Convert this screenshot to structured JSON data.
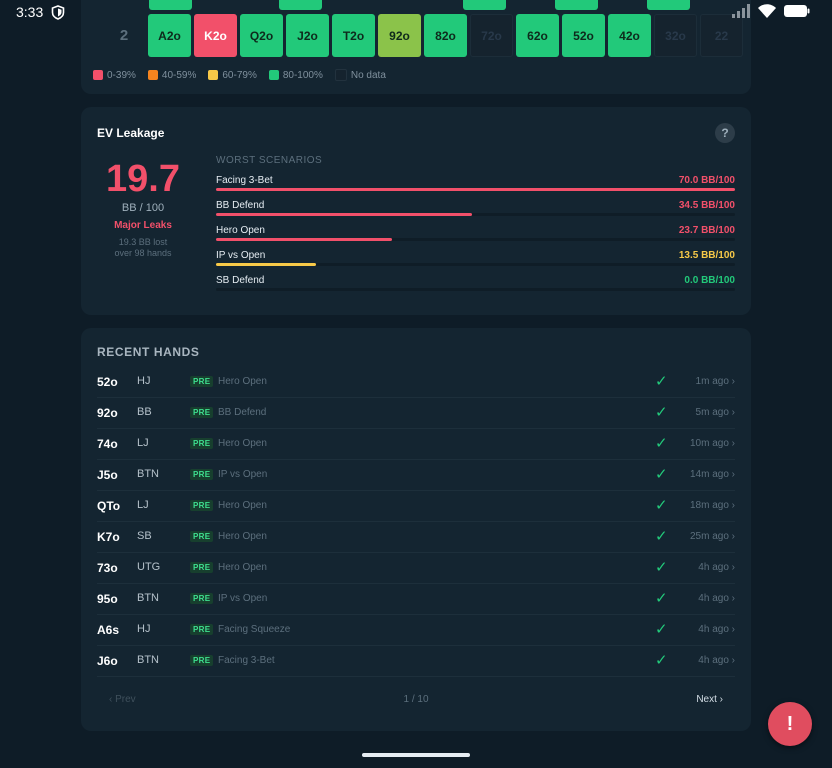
{
  "status_bar": {
    "time": "3:33"
  },
  "grid": {
    "row_label": "2",
    "cells": [
      {
        "text": "A2o",
        "color": "green"
      },
      {
        "text": "K2o",
        "color": "red"
      },
      {
        "text": "Q2o",
        "color": "green"
      },
      {
        "text": "J2o",
        "color": "green"
      },
      {
        "text": "T2o",
        "color": "green"
      },
      {
        "text": "92o",
        "color": "light-green"
      },
      {
        "text": "82o",
        "color": "green"
      },
      {
        "text": "72o",
        "color": "no-data"
      },
      {
        "text": "62o",
        "color": "green"
      },
      {
        "text": "52o",
        "color": "green"
      },
      {
        "text": "42o",
        "color": "green"
      },
      {
        "text": "32o",
        "color": "no-data"
      },
      {
        "text": "22",
        "color": "no-data"
      }
    ],
    "legend": [
      {
        "label": "0-39%",
        "color": "#f2506a"
      },
      {
        "label": "40-59%",
        "color": "#f5841f"
      },
      {
        "label": "60-79%",
        "color": "#f7c948"
      },
      {
        "label": "80-100%",
        "color": "#22c97a"
      },
      {
        "label": "No data",
        "color": "#15232e"
      }
    ]
  },
  "ev": {
    "title": "EV Leakage",
    "help": "?",
    "value": "19.7",
    "unit": "BB / 100",
    "status": "Major Leaks",
    "lost_line1": "19.3 BB lost",
    "lost_line2": "over 98 hands",
    "scenarios_heading": "WORST SCENARIOS",
    "scenarios": [
      {
        "name": "Facing 3-Bet",
        "value": "70.0 BB/100",
        "pct": 100,
        "color": "#f2506a"
      },
      {
        "name": "BB Defend",
        "value": "34.5 BB/100",
        "pct": 49.3,
        "color": "#f2506a"
      },
      {
        "name": "Hero Open",
        "value": "23.7 BB/100",
        "pct": 33.9,
        "color": "#f2506a"
      },
      {
        "name": "IP vs Open",
        "value": "13.5 BB/100",
        "pct": 19.3,
        "color": "#f7c948"
      },
      {
        "name": "SB Defend",
        "value": "0.0 BB/100",
        "pct": 0,
        "color": "#22c97a"
      }
    ]
  },
  "recent": {
    "title": "RECENT HANDS",
    "hands": [
      {
        "cards": "52o",
        "pos": "HJ",
        "badge": "PRE",
        "scenario": "Hero Open",
        "check": "✓",
        "time": "1m ago ›"
      },
      {
        "cards": "92o",
        "pos": "BB",
        "badge": "PRE",
        "scenario": "BB Defend",
        "check": "✓",
        "time": "5m ago ›"
      },
      {
        "cards": "74o",
        "pos": "LJ",
        "badge": "PRE",
        "scenario": "Hero Open",
        "check": "✓",
        "time": "10m ago ›"
      },
      {
        "cards": "J5o",
        "pos": "BTN",
        "badge": "PRE",
        "scenario": "IP vs Open",
        "check": "✓",
        "time": "14m ago ›"
      },
      {
        "cards": "QTo",
        "pos": "LJ",
        "badge": "PRE",
        "scenario": "Hero Open",
        "check": "✓",
        "time": "18m ago ›"
      },
      {
        "cards": "K7o",
        "pos": "SB",
        "badge": "PRE",
        "scenario": "Hero Open",
        "check": "✓",
        "time": "25m ago ›"
      },
      {
        "cards": "73o",
        "pos": "UTG",
        "badge": "PRE",
        "scenario": "Hero Open",
        "check": "✓",
        "time": "4h ago ›"
      },
      {
        "cards": "95o",
        "pos": "BTN",
        "badge": "PRE",
        "scenario": "IP vs Open",
        "check": "✓",
        "time": "4h ago ›"
      },
      {
        "cards": "A6s",
        "pos": "HJ",
        "badge": "PRE",
        "scenario": "Facing Squeeze",
        "check": "✓",
        "time": "4h ago ›"
      },
      {
        "cards": "J6o",
        "pos": "BTN",
        "badge": "PRE",
        "scenario": "Facing 3-Bet",
        "check": "✓",
        "time": "4h ago ›"
      }
    ],
    "pager": {
      "prev": "‹ Prev",
      "page": "1 / 10",
      "next": "Next ›"
    }
  },
  "fab": {
    "label": "!"
  }
}
